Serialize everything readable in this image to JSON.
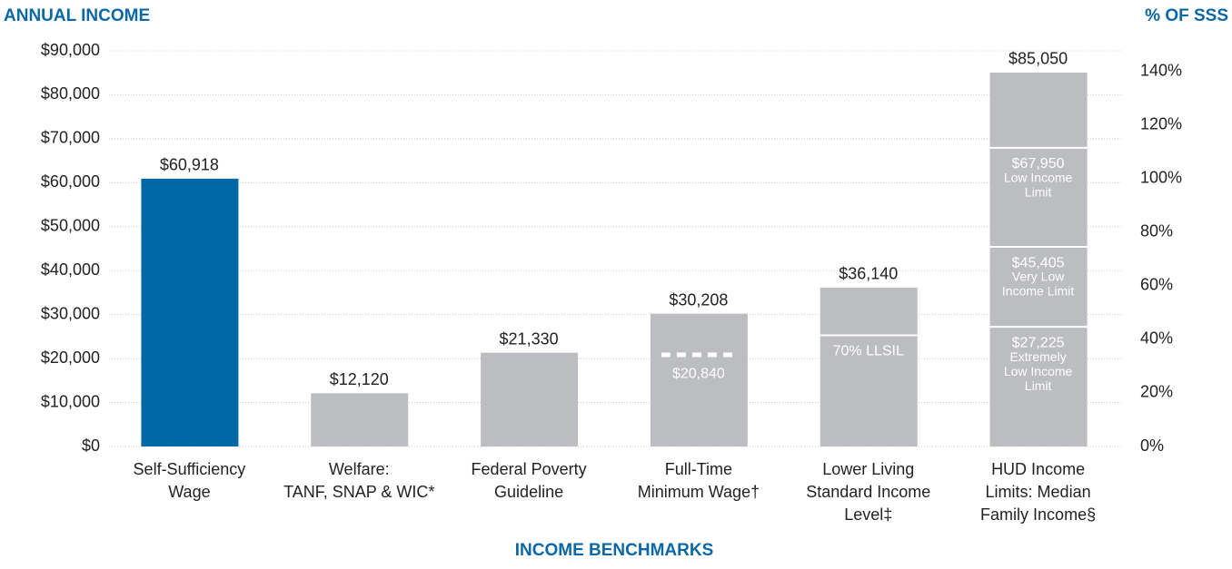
{
  "chart_data": {
    "type": "bar",
    "y_axis_title": "ANNUAL INCOME",
    "y2_axis_title": "% OF SSS",
    "x_axis_title": "INCOME BENCHMARKS",
    "categories": [
      [
        "Self-Sufficiency",
        "Wage"
      ],
      [
        "Welfare:",
        "TANF, SNAP & WIC*"
      ],
      [
        "Federal Poverty",
        "Guideline"
      ],
      [
        "Full-Time",
        "Minimum Wage†"
      ],
      [
        "Lower Living",
        "Standard Income",
        "Level‡"
      ],
      [
        "HUD Income",
        "Limits: Median",
        "Family Income§"
      ]
    ],
    "values": [
      60918,
      12120,
      21330,
      30208,
      36140,
      85050
    ],
    "value_labels": [
      "$60,918",
      "$12,120",
      "$21,330",
      "$30,208",
      "$36,140",
      "$85,050"
    ],
    "colors": [
      "#0068a5",
      "#bcbdc0",
      "#bcbdc0",
      "#bcbdc0",
      "#bcbdc0",
      "#bcbdc0"
    ],
    "markers": [
      [],
      [],
      [],
      [
        {
          "value": 20840,
          "dashed": true,
          "lines": [
            "$20,840"
          ]
        }
      ],
      [
        {
          "value": 25298,
          "dashed": false,
          "lines": [
            "70% LLSIL"
          ]
        }
      ],
      [
        {
          "value": 67950,
          "dashed": false,
          "lines": [
            "$67,950",
            "Low Income",
            "Limit"
          ]
        },
        {
          "value": 45405,
          "dashed": false,
          "lines": [
            "$45,405",
            "Very Low",
            "Income Limit"
          ]
        },
        {
          "value": 27225,
          "dashed": false,
          "lines": [
            "$27,225",
            "Extremely",
            "Low Income",
            "Limit"
          ]
        }
      ]
    ],
    "ylim": [
      0,
      90000
    ],
    "yticks": [
      {
        "value": 0,
        "label": "$0"
      },
      {
        "value": 10000,
        "label": "$10,000"
      },
      {
        "value": 20000,
        "label": "$20,000"
      },
      {
        "value": 30000,
        "label": "$30,000"
      },
      {
        "value": 40000,
        "label": "$40,000"
      },
      {
        "value": 50000,
        "label": "$50,000"
      },
      {
        "value": 60000,
        "label": "$60,000"
      },
      {
        "value": 70000,
        "label": "$70,000"
      },
      {
        "value": 80000,
        "label": "$80,000"
      },
      {
        "value": 90000,
        "label": "$90,000"
      }
    ],
    "y2lim": [
      0,
      147.7
    ],
    "y2ticks": [
      {
        "value": 0,
        "label": "0%"
      },
      {
        "value": 20,
        "label": "20%"
      },
      {
        "value": 40,
        "label": "40%"
      },
      {
        "value": 60,
        "label": "60%"
      },
      {
        "value": 80,
        "label": "80%"
      },
      {
        "value": 100,
        "label": "100%"
      },
      {
        "value": 120,
        "label": "120%"
      },
      {
        "value": 140,
        "label": "140%"
      }
    ],
    "grid": true
  }
}
